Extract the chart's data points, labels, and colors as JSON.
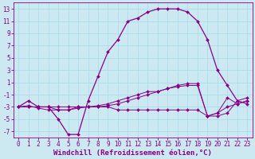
{
  "xlabel": "Windchill (Refroidissement éolien,°C)",
  "bg_color": "#cce8f0",
  "line_color": "#880088",
  "grid_color": "#aaddee",
  "xlim": [
    -0.5,
    23.5
  ],
  "ylim": [
    -8,
    14
  ],
  "yticks": [
    -7,
    -5,
    -3,
    -1,
    1,
    3,
    5,
    7,
    9,
    11,
    13
  ],
  "xticks": [
    0,
    1,
    2,
    3,
    4,
    5,
    6,
    7,
    8,
    9,
    10,
    11,
    12,
    13,
    14,
    15,
    16,
    17,
    18,
    19,
    20,
    21,
    22,
    23
  ],
  "line1_x": [
    0,
    1,
    2,
    3,
    4,
    5,
    6,
    7,
    8,
    9,
    10,
    11,
    12,
    13,
    14,
    15,
    16,
    17,
    18,
    19,
    20,
    21,
    22,
    23
  ],
  "line1_y": [
    -3,
    -2,
    -3,
    -3,
    -5,
    -7.5,
    -7.5,
    -2,
    2,
    6,
    8,
    11,
    11.5,
    12.5,
    13,
    13,
    13,
    12.5,
    11,
    8,
    3,
    0.5,
    -2,
    -2.5
  ],
  "line2_x": [
    0,
    1,
    2,
    3,
    4,
    5,
    6,
    7,
    8,
    9,
    10,
    11,
    12,
    13,
    14,
    15,
    16,
    17,
    18,
    19,
    20,
    21,
    22,
    23
  ],
  "line2_y": [
    -3,
    -3,
    -3,
    -3,
    -3.5,
    -3.5,
    -3,
    -3,
    -3,
    -2.8,
    -2.5,
    -2,
    -1.5,
    -1,
    -0.5,
    0,
    0.3,
    0.5,
    0.5,
    -4.5,
    -4.5,
    -4,
    -2,
    -1.5
  ],
  "line3_x": [
    0,
    1,
    2,
    3,
    4,
    5,
    6,
    7,
    8,
    9,
    10,
    11,
    12,
    13,
    14,
    15,
    16,
    17,
    18,
    19,
    20,
    21,
    22,
    23
  ],
  "line3_y": [
    -3,
    -3,
    -3,
    -3,
    -3,
    -3,
    -3,
    -3,
    -3,
    -3,
    -3.5,
    -3.5,
    -3.5,
    -3.5,
    -3.5,
    -3.5,
    -3.5,
    -3.5,
    -3.5,
    -4.5,
    -4,
    -3,
    -2.5,
    -2
  ],
  "line4_x": [
    0,
    1,
    2,
    3,
    4,
    5,
    6,
    7,
    8,
    9,
    10,
    11,
    12,
    13,
    14,
    15,
    16,
    17,
    18,
    19,
    20,
    21,
    22,
    23
  ],
  "line4_y": [
    -3,
    -2.8,
    -3.2,
    -3.5,
    -3.5,
    -3.5,
    -3.2,
    -3,
    -2.8,
    -2.5,
    -2,
    -1.5,
    -1,
    -0.5,
    -0.5,
    0,
    0.5,
    0.8,
    0.8,
    -4.5,
    -4,
    -1.5,
    -2.5,
    -2
  ],
  "label_fontsize": 6.5,
  "tick_fontsize": 5.5,
  "marker_size": 2.0
}
